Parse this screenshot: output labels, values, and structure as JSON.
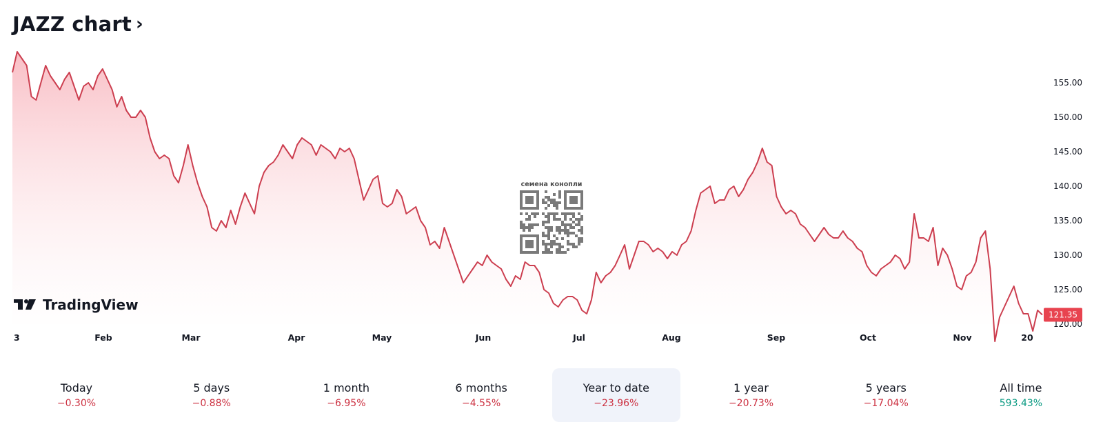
{
  "header": {
    "title": "JAZZ chart",
    "chevron": "›"
  },
  "watermark": {
    "brand": "TradingView",
    "qr_caption": "семена конопли"
  },
  "colors": {
    "line": "#cc3e4f",
    "fill": "#f9c9cf",
    "price_tag": "#e8434f",
    "negative": "#cc3040",
    "positive": "#089981",
    "active_bg": "#f0f3fa"
  },
  "chart_data": {
    "type": "area",
    "x_labels": [
      "3",
      "Feb",
      "Mar",
      "Apr",
      "May",
      "Jun",
      "Jul",
      "Aug",
      "Sep",
      "Oct",
      "Nov",
      "20"
    ],
    "y_ticks": [
      "155.00",
      "150.00",
      "145.00",
      "140.00",
      "135.00",
      "130.00",
      "125.00",
      "120.00"
    ],
    "ylim": [
      117,
      163
    ],
    "last_price": "121.35",
    "series": [
      {
        "values": [
          156.5,
          159.5,
          158.5,
          157.5,
          153,
          152.5,
          155,
          157.5,
          156,
          155,
          154,
          155.5,
          156.5,
          154.5,
          152.5,
          154.5,
          155,
          154,
          156,
          157,
          155.5,
          154,
          151.5,
          153,
          151,
          150,
          150,
          151,
          150,
          147,
          145,
          144,
          144.5,
          144,
          141.5,
          140.5,
          143,
          146,
          143,
          140.5,
          138.5,
          137,
          134,
          133.5,
          135,
          134,
          136.5,
          134.5,
          137,
          139,
          137.5,
          136,
          140,
          142,
          143,
          143.5,
          144.5,
          146,
          145,
          144,
          146,
          147,
          146.5,
          146,
          144.5,
          146,
          145.5,
          145,
          144,
          145.5,
          145,
          145.5,
          144,
          141,
          138,
          139.5,
          141,
          141.5,
          137.5,
          137,
          137.5,
          139.5,
          138.5,
          136,
          136.5,
          137,
          135,
          134,
          131.5,
          132,
          131,
          134,
          132,
          130,
          128,
          126,
          127,
          128,
          129,
          128.5,
          130,
          129,
          128.5,
          128,
          126.5,
          125.5,
          127,
          126.5,
          129,
          128.5,
          128.5,
          127.5,
          125,
          124.5,
          123,
          122.5,
          123.5,
          124,
          124,
          123.5,
          122,
          121.5,
          123.5,
          127.5,
          126,
          127,
          127.5,
          128.5,
          130,
          131.5,
          128,
          130,
          132,
          132,
          131.5,
          130.5,
          131,
          130.5,
          129.5,
          130.5,
          130,
          131.5,
          132,
          133.5,
          136.5,
          139,
          139.5,
          140,
          137.5,
          138,
          138,
          139.5,
          140,
          138.5,
          139.5,
          141,
          142,
          143.5,
          145.5,
          143.5,
          143,
          138.5,
          137,
          136,
          136.5,
          136,
          134.5,
          134,
          133,
          132,
          133,
          134,
          133,
          132.5,
          132.5,
          133.5,
          132.5,
          132,
          131,
          130.5,
          128.5,
          127.5,
          127,
          128,
          128.5,
          129,
          130,
          129.5,
          128,
          129,
          136,
          132.5,
          132.5,
          132,
          134,
          128.5,
          131,
          130,
          128,
          125.5,
          125,
          127,
          127.5,
          129,
          132.5,
          133.5,
          128,
          117.5,
          121,
          122.5,
          124,
          125.5,
          123,
          121.5,
          121.5,
          119,
          122,
          121.35
        ]
      }
    ]
  },
  "periods": [
    {
      "label": "Today",
      "change": "−0.30%",
      "dir": "neg"
    },
    {
      "label": "5 days",
      "change": "−0.88%",
      "dir": "neg"
    },
    {
      "label": "1 month",
      "change": "−6.95%",
      "dir": "neg"
    },
    {
      "label": "6 months",
      "change": "−4.55%",
      "dir": "neg"
    },
    {
      "label": "Year to date",
      "change": "−23.96%",
      "dir": "neg",
      "active": true
    },
    {
      "label": "1 year",
      "change": "−20.73%",
      "dir": "neg"
    },
    {
      "label": "5 years",
      "change": "−17.04%",
      "dir": "neg"
    },
    {
      "label": "All time",
      "change": "593.43%",
      "dir": "pos"
    }
  ]
}
